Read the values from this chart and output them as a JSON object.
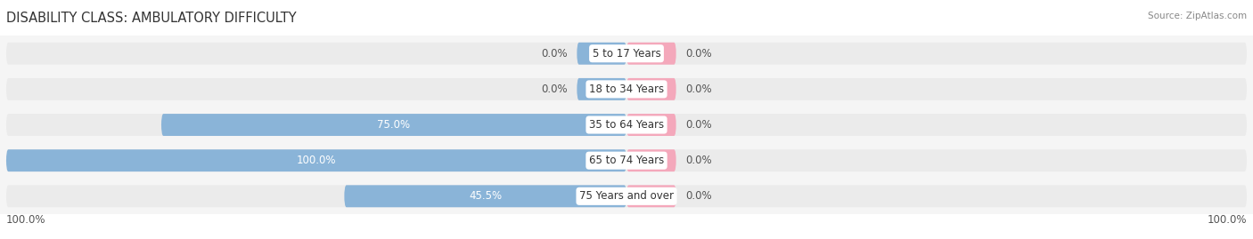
{
  "title": "DISABILITY CLASS: AMBULATORY DIFFICULTY",
  "source": "Source: ZipAtlas.com",
  "categories": [
    "5 to 17 Years",
    "18 to 34 Years",
    "35 to 64 Years",
    "65 to 74 Years",
    "75 Years and over"
  ],
  "male_values": [
    0.0,
    0.0,
    75.0,
    100.0,
    45.5
  ],
  "female_values": [
    0.0,
    0.0,
    0.0,
    0.0,
    0.0
  ],
  "male_color": "#8ab4d8",
  "female_color": "#f4a8bb",
  "bar_bg_color": "#ebebeb",
  "bar_height": 0.62,
  "max_val": 100.0,
  "female_min_display": 8.0,
  "male_min_display": 8.0,
  "x_left_label": "100.0%",
  "x_right_label": "100.0%",
  "title_fontsize": 10.5,
  "label_fontsize": 8.5,
  "category_fontsize": 8.5,
  "axis_label_fontsize": 8.5,
  "legend_fontsize": 9,
  "background_color": "#ffffff",
  "bar_row_bg": "#f5f5f5"
}
